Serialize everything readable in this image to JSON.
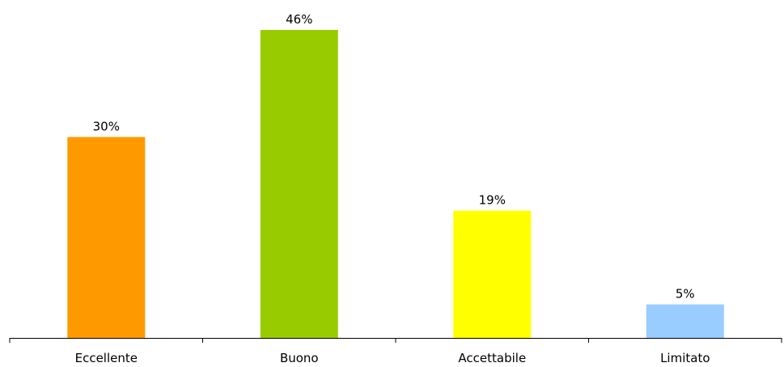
{
  "chart_data": {
    "type": "bar",
    "categories": [
      "Eccellente",
      "Buono",
      "Accettabile",
      "Limitato"
    ],
    "values": [
      30,
      46,
      19,
      5
    ],
    "data_labels": [
      "30%",
      "46%",
      "19%",
      "5%"
    ],
    "colors": [
      "#ff9900",
      "#99cc00",
      "#ffff00",
      "#99ccff"
    ],
    "axis_color": "#000000",
    "ylim": [
      0,
      46
    ],
    "grid": false,
    "legend": "none"
  }
}
